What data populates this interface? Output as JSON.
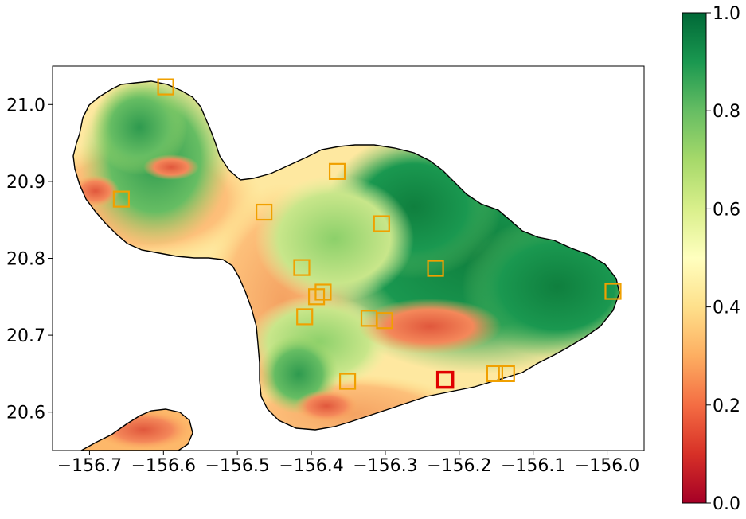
{
  "map": {
    "xlim": [
      -156.75,
      -155.95
    ],
    "ylim": [
      20.55,
      21.05
    ],
    "x_ticks": [
      {
        "value": -156.7,
        "label": "−156.7"
      },
      {
        "value": -156.6,
        "label": "−156.6"
      },
      {
        "value": -156.5,
        "label": "−156.5"
      },
      {
        "value": -156.4,
        "label": "−156.4"
      },
      {
        "value": -156.3,
        "label": "−156.3"
      },
      {
        "value": -156.2,
        "label": "−156.2"
      },
      {
        "value": -156.1,
        "label": "−156.1"
      },
      {
        "value": -156.0,
        "label": "−156.0"
      }
    ],
    "y_ticks": [
      {
        "value": 20.6,
        "label": "20.6"
      },
      {
        "value": 20.7,
        "label": "20.7"
      },
      {
        "value": 20.8,
        "label": "20.8"
      },
      {
        "value": 20.9,
        "label": "20.9"
      },
      {
        "value": 21.0,
        "label": "21.0"
      }
    ],
    "markers": [
      {
        "lon": -156.597,
        "lat": 21.023,
        "color": "#f0a000"
      },
      {
        "lon": -156.657,
        "lat": 20.877,
        "color": "#f0a000"
      },
      {
        "lon": -156.464,
        "lat": 20.86,
        "color": "#f0a000"
      },
      {
        "lon": -156.365,
        "lat": 20.913,
        "color": "#f0a000"
      },
      {
        "lon": -156.305,
        "lat": 20.845,
        "color": "#f0a000"
      },
      {
        "lon": -156.413,
        "lat": 20.788,
        "color": "#f0a000"
      },
      {
        "lon": -156.384,
        "lat": 20.756,
        "color": "#f0a000"
      },
      {
        "lon": -156.393,
        "lat": 20.75,
        "color": "#f0a000"
      },
      {
        "lon": -156.409,
        "lat": 20.724,
        "color": "#f0a000"
      },
      {
        "lon": -156.322,
        "lat": 20.722,
        "color": "#f0a000"
      },
      {
        "lon": -156.301,
        "lat": 20.719,
        "color": "#f0a000"
      },
      {
        "lon": -156.232,
        "lat": 20.787,
        "color": "#f0a000"
      },
      {
        "lon": -156.351,
        "lat": 20.64,
        "color": "#f0a000"
      },
      {
        "lon": -156.152,
        "lat": 20.65,
        "color": "#f0a000"
      },
      {
        "lon": -156.136,
        "lat": 20.65,
        "color": "#f0a000"
      },
      {
        "lon": -155.992,
        "lat": 20.757,
        "color": "#f0a000"
      },
      {
        "lon": -156.219,
        "lat": 20.642,
        "color": "#e00000"
      }
    ]
  },
  "colorbar": {
    "range": [
      0.0,
      1.0
    ],
    "colormap": "RdYlGn",
    "ticks": [
      {
        "value": 0.0,
        "label": "0.0"
      },
      {
        "value": 0.2,
        "label": "0.2"
      },
      {
        "value": 0.4,
        "label": "0.4"
      },
      {
        "value": 0.6,
        "label": "0.6"
      },
      {
        "value": 0.8,
        "label": "0.8"
      },
      {
        "value": 1.0,
        "label": "1.0"
      }
    ]
  }
}
